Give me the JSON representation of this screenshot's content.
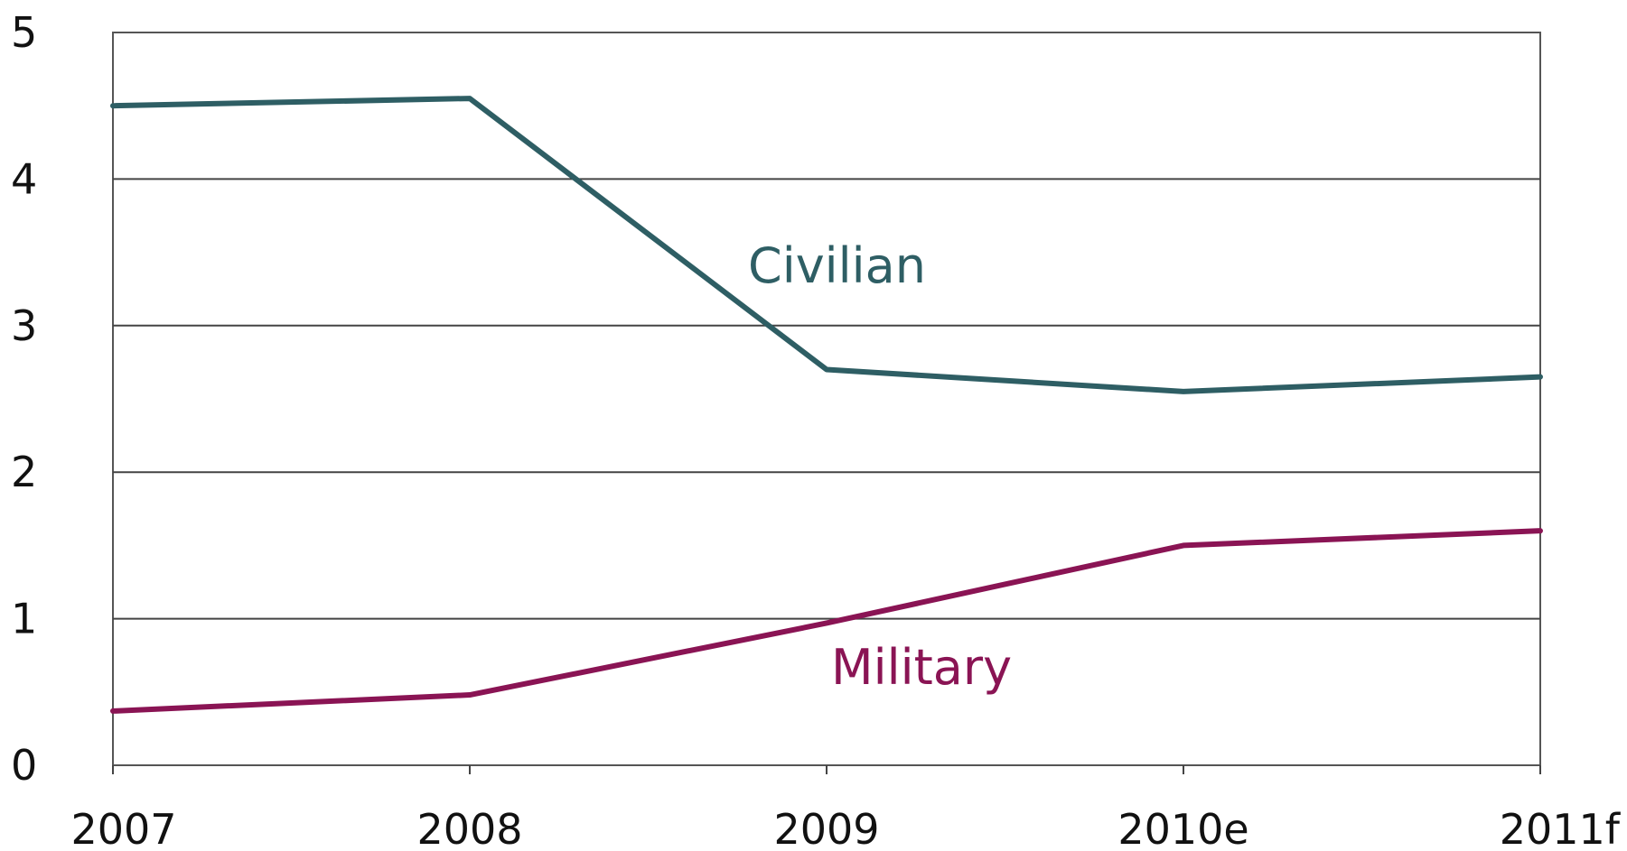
{
  "chart_data": {
    "type": "line",
    "categories": [
      "2007",
      "2008",
      "2009",
      "2010e",
      "2011f"
    ],
    "series": [
      {
        "name": "Civilian",
        "values": [
          4.5,
          4.55,
          2.7,
          2.55,
          2.65
        ],
        "color": "#2e5e64"
      },
      {
        "name": "Military",
        "values": [
          0.37,
          0.48,
          0.97,
          1.5,
          1.6
        ],
        "color": "#8a1454"
      }
    ],
    "ylim": [
      0,
      5
    ],
    "yticks": [
      "0",
      "1",
      "2",
      "3",
      "4",
      "5"
    ],
    "grid": true,
    "legend": "inline"
  }
}
